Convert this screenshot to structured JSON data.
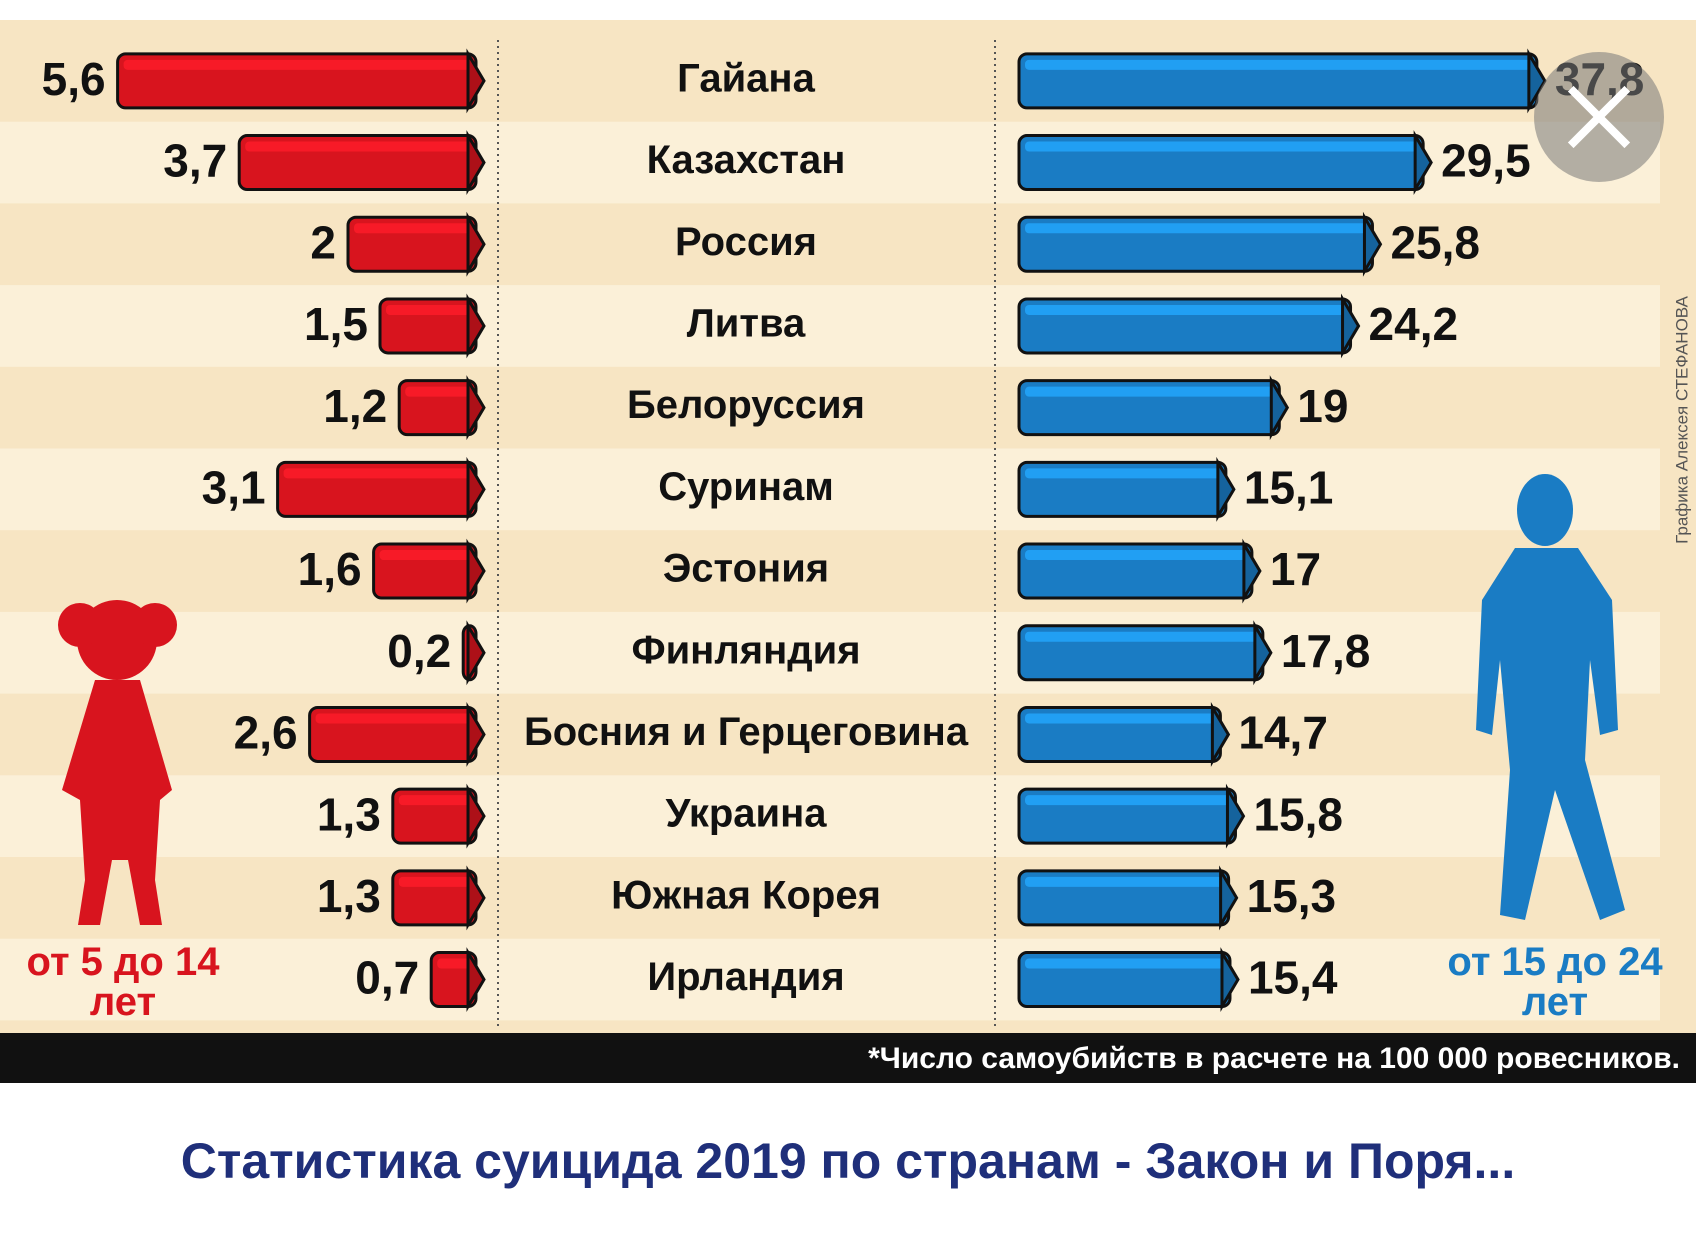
{
  "chart_data": {
    "type": "bar",
    "categories": [
      "Гайана",
      "Казахстан",
      "Россия",
      "Литва",
      "Белоруссия",
      "Суринам",
      "Эстония",
      "Финляндия",
      "Босния и Герцеговина",
      "Украина",
      "Южная Корея",
      "Ирландия"
    ],
    "series": [
      {
        "name": "от 5 до 14 лет",
        "color": "#d8141e",
        "values": [
          5.6,
          3.7,
          2,
          1.5,
          1.2,
          3.1,
          1.6,
          0.2,
          2.6,
          1.3,
          1.3,
          0.7
        ],
        "value_labels": [
          "5,6",
          "3,7",
          "2",
          "1,5",
          "1,2",
          "3,1",
          "1,6",
          "0,2",
          "2,6",
          "1,3",
          "1,3",
          "0,7"
        ]
      },
      {
        "name": "от 15 до 24 лет",
        "color": "#1a7cc4",
        "values": [
          37.8,
          29.5,
          25.8,
          24.2,
          19,
          15.1,
          17,
          17.8,
          14.7,
          15.8,
          15.3,
          15.4
        ],
        "value_labels": [
          "37,8",
          "29,5",
          "25,8",
          "24,2",
          "19",
          "15,1",
          "17",
          "17,8",
          "14,7",
          "15,8",
          "15,3",
          "15,4"
        ]
      }
    ],
    "footnote": "*Число самоубийств в расчете на 100 000 ровесников.",
    "credit": "Графика Алексея СТЕФАНОВА"
  },
  "caption": "Статистика суицида 2019 по странам - Закон и Поря..."
}
